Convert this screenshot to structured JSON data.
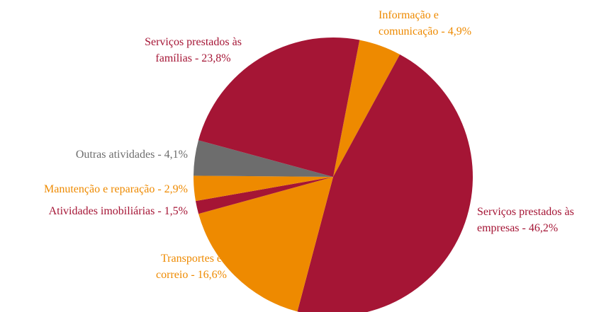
{
  "chart_data": {
    "type": "pie",
    "categories": [
      "Informação e comunicação",
      "Serviços prestados às empresas",
      "Transportes e correio",
      "Atividades imobiliárias",
      "Manutenção e reparação",
      "Outras atividades",
      "Serviços prestados às famílias"
    ],
    "values": [
      4.9,
      46.2,
      16.6,
      1.5,
      2.9,
      4.1,
      23.8
    ],
    "value_labels": [
      "- 4,9%",
      "- 46,2%",
      "- 16,6%",
      "- 1,5%",
      "- 2,9%",
      "- 4,1%",
      "- 23,8%"
    ],
    "colors": [
      "#ee8a00",
      "#a51535",
      "#ee8a00",
      "#a51535",
      "#ee8a00",
      "#6d6d6d",
      "#a51535"
    ]
  }
}
